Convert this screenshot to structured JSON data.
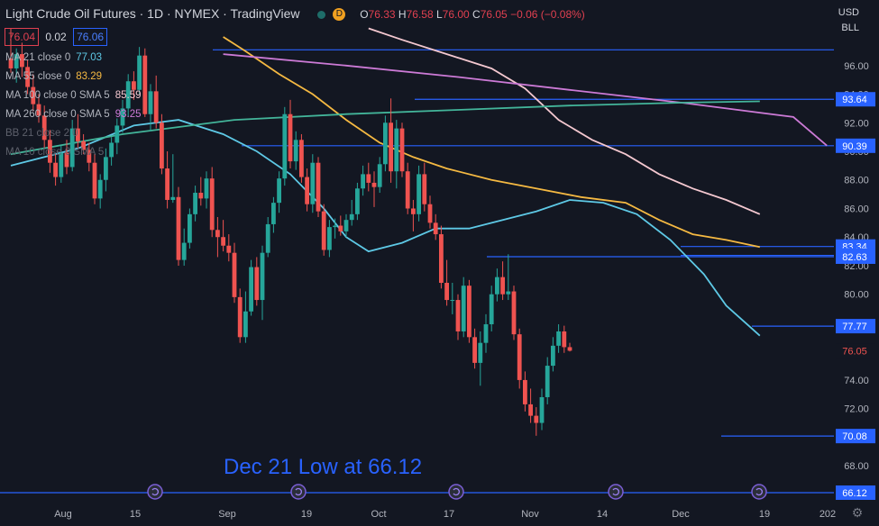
{
  "header": {
    "title": "Light Crude Oil Futures · 1D · NYMEX · TradingView",
    "badge": "D",
    "o_label": "O",
    "o": "76.33",
    "h_label": "H",
    "h": "76.58",
    "l_label": "L",
    "l": "76.00",
    "c_label": "C",
    "c": "76.05",
    "change": "−0.06 (−0.08%)"
  },
  "price_box": {
    "sell": "76.04",
    "spread": "0.02",
    "buy": "76.06"
  },
  "indicators": [
    {
      "label": "MA 21 close 0",
      "value": "77.03",
      "color": "#5ec9e6"
    },
    {
      "label": "MA 55 close 0",
      "value": "83.29",
      "color": "#f5b942"
    },
    {
      "label": "MA 100 close 0 SMA 5",
      "value": "85.59",
      "color": "#f4c8d0"
    },
    {
      "label": "MA 260 close 0 SMA 5",
      "value": "93.25",
      "color": "#cc7ad6"
    },
    {
      "label": "BB 21 close 2 0",
      "value": "",
      "color": "#5d606b"
    },
    {
      "label": "MA 10 close 0 SMA 5",
      "value": "",
      "color": "#5d606b"
    }
  ],
  "currency": "USD",
  "unit": "BLL",
  "annotation": "Dec 21 Low at 66.12",
  "colors": {
    "up": "#26a69a",
    "down": "#ef5350",
    "level": "#2962ff",
    "bg": "#131722"
  },
  "chart_data": {
    "type": "candlestick",
    "ylim": [
      65.3,
      99.2
    ],
    "y_ticks": [
      "96.00",
      "94.00",
      "92.00",
      "90.00",
      "88.00",
      "86.00",
      "84.00",
      "82.00",
      "80.00",
      "78.00",
      "76.00",
      "74.00",
      "72.00",
      "70.00",
      "68.00"
    ],
    "x_ticks": [
      "Aug",
      "15",
      "Sep",
      "19",
      "Oct",
      "17",
      "Nov",
      "14",
      "Dec",
      "19",
      "202"
    ],
    "levels": [
      {
        "label": "93.64",
        "value": 93.64
      },
      {
        "label": "90.39",
        "value": 90.39
      },
      {
        "label": "83.34",
        "value": 83.34
      },
      {
        "label": "82.72",
        "value": 82.72
      },
      {
        "label": "82.63",
        "value": 82.63
      },
      {
        "label": "77.77",
        "value": 77.77
      },
      {
        "label": "76.05",
        "value": 76.05
      },
      {
        "label": "70.08",
        "value": 70.08
      },
      {
        "label": "66.12",
        "value": 66.12
      }
    ],
    "candles": [
      {
        "o": 96.5,
        "h": 98.6,
        "l": 95.5,
        "c": 95.8
      },
      {
        "o": 95.8,
        "h": 97.2,
        "l": 94.8,
        "c": 96.8
      },
      {
        "o": 96.8,
        "h": 97.6,
        "l": 95.2,
        "c": 95.9
      },
      {
        "o": 95.9,
        "h": 96.4,
        "l": 94.0,
        "c": 94.5
      },
      {
        "o": 94.5,
        "h": 95.4,
        "l": 92.8,
        "c": 93.3
      },
      {
        "o": 93.3,
        "h": 94.0,
        "l": 92.0,
        "c": 92.5
      },
      {
        "o": 92.5,
        "h": 93.2,
        "l": 90.2,
        "c": 90.8
      },
      {
        "o": 90.8,
        "h": 91.5,
        "l": 88.5,
        "c": 89.2
      },
      {
        "o": 89.2,
        "h": 89.8,
        "l": 87.6,
        "c": 88.2
      },
      {
        "o": 88.2,
        "h": 90.4,
        "l": 87.8,
        "c": 89.9
      },
      {
        "o": 89.9,
        "h": 90.8,
        "l": 88.4,
        "c": 88.9
      },
      {
        "o": 88.9,
        "h": 92.2,
        "l": 88.6,
        "c": 91.6
      },
      {
        "o": 91.6,
        "h": 92.6,
        "l": 90.2,
        "c": 90.7
      },
      {
        "o": 90.7,
        "h": 91.2,
        "l": 89.8,
        "c": 90.1
      },
      {
        "o": 90.1,
        "h": 90.6,
        "l": 88.6,
        "c": 89.2
      },
      {
        "o": 89.2,
        "h": 89.8,
        "l": 86.3,
        "c": 86.7
      },
      {
        "o": 86.7,
        "h": 88.4,
        "l": 86.0,
        "c": 88.0
      },
      {
        "o": 88.0,
        "h": 90.2,
        "l": 87.2,
        "c": 89.6
      },
      {
        "o": 89.6,
        "h": 91.0,
        "l": 89.0,
        "c": 90.6
      },
      {
        "o": 90.6,
        "h": 92.3,
        "l": 89.8,
        "c": 91.8
      },
      {
        "o": 91.8,
        "h": 93.6,
        "l": 91.3,
        "c": 93.0
      },
      {
        "o": 93.0,
        "h": 95.4,
        "l": 92.4,
        "c": 94.9
      },
      {
        "o": 94.9,
        "h": 95.6,
        "l": 93.6,
        "c": 94.3
      },
      {
        "o": 94.3,
        "h": 97.3,
        "l": 94.0,
        "c": 96.7
      },
      {
        "o": 96.7,
        "h": 97.2,
        "l": 92.4,
        "c": 92.6
      },
      {
        "o": 92.6,
        "h": 94.7,
        "l": 91.4,
        "c": 94.2
      },
      {
        "o": 94.2,
        "h": 95.3,
        "l": 91.6,
        "c": 92.0
      },
      {
        "o": 92.0,
        "h": 92.6,
        "l": 88.4,
        "c": 88.8
      },
      {
        "o": 88.8,
        "h": 90.0,
        "l": 86.0,
        "c": 86.6
      },
      {
        "o": 86.6,
        "h": 89.8,
        "l": 86.4,
        "c": 86.8
      },
      {
        "o": 86.8,
        "h": 87.5,
        "l": 82.0,
        "c": 82.4
      },
      {
        "o": 82.4,
        "h": 84.6,
        "l": 82.0,
        "c": 83.6
      },
      {
        "o": 83.6,
        "h": 86.0,
        "l": 83.2,
        "c": 85.6
      },
      {
        "o": 85.6,
        "h": 87.6,
        "l": 85.1,
        "c": 87.1
      },
      {
        "o": 87.1,
        "h": 88.2,
        "l": 86.2,
        "c": 86.7
      },
      {
        "o": 86.7,
        "h": 88.6,
        "l": 86.0,
        "c": 88.1
      },
      {
        "o": 88.1,
        "h": 88.9,
        "l": 84.0,
        "c": 84.5
      },
      {
        "o": 84.5,
        "h": 85.4,
        "l": 82.6,
        "c": 84.0
      },
      {
        "o": 84.0,
        "h": 85.2,
        "l": 83.0,
        "c": 83.4
      },
      {
        "o": 83.4,
        "h": 84.2,
        "l": 82.3,
        "c": 82.9
      },
      {
        "o": 82.9,
        "h": 83.6,
        "l": 79.4,
        "c": 79.8
      },
      {
        "o": 79.8,
        "h": 80.4,
        "l": 76.6,
        "c": 77.0
      },
      {
        "o": 77.0,
        "h": 80.2,
        "l": 76.6,
        "c": 78.8
      },
      {
        "o": 78.8,
        "h": 82.4,
        "l": 78.5,
        "c": 81.9
      },
      {
        "o": 81.9,
        "h": 82.6,
        "l": 79.2,
        "c": 79.6
      },
      {
        "o": 79.6,
        "h": 83.4,
        "l": 78.2,
        "c": 82.9
      },
      {
        "o": 82.9,
        "h": 85.4,
        "l": 82.6,
        "c": 84.9
      },
      {
        "o": 84.9,
        "h": 86.8,
        "l": 84.3,
        "c": 86.4
      },
      {
        "o": 86.4,
        "h": 88.6,
        "l": 85.7,
        "c": 88.1
      },
      {
        "o": 88.1,
        "h": 93.1,
        "l": 87.6,
        "c": 92.6
      },
      {
        "o": 92.6,
        "h": 93.6,
        "l": 88.8,
        "c": 89.3
      },
      {
        "o": 89.3,
        "h": 91.4,
        "l": 88.7,
        "c": 90.8
      },
      {
        "o": 90.8,
        "h": 91.2,
        "l": 87.8,
        "c": 88.2
      },
      {
        "o": 88.2,
        "h": 88.8,
        "l": 85.8,
        "c": 86.3
      },
      {
        "o": 86.3,
        "h": 89.8,
        "l": 85.7,
        "c": 89.2
      },
      {
        "o": 89.2,
        "h": 89.6,
        "l": 85.4,
        "c": 85.8
      },
      {
        "o": 85.8,
        "h": 86.3,
        "l": 82.7,
        "c": 83.1
      },
      {
        "o": 83.1,
        "h": 85.2,
        "l": 82.6,
        "c": 84.7
      },
      {
        "o": 84.7,
        "h": 85.3,
        "l": 83.9,
        "c": 84.8
      },
      {
        "o": 84.8,
        "h": 85.5,
        "l": 84.1,
        "c": 84.4
      },
      {
        "o": 84.4,
        "h": 85.6,
        "l": 84.0,
        "c": 85.2
      },
      {
        "o": 85.2,
        "h": 86.6,
        "l": 84.8,
        "c": 85.6
      },
      {
        "o": 85.6,
        "h": 87.8,
        "l": 85.2,
        "c": 87.4
      },
      {
        "o": 87.4,
        "h": 89.0,
        "l": 86.9,
        "c": 88.4
      },
      {
        "o": 88.4,
        "h": 89.2,
        "l": 87.2,
        "c": 87.8
      },
      {
        "o": 87.8,
        "h": 88.6,
        "l": 86.1,
        "c": 87.5
      },
      {
        "o": 87.5,
        "h": 89.6,
        "l": 87.1,
        "c": 89.1
      },
      {
        "o": 89.1,
        "h": 92.5,
        "l": 88.6,
        "c": 92.0
      },
      {
        "o": 92.0,
        "h": 93.7,
        "l": 87.8,
        "c": 88.6
      },
      {
        "o": 88.6,
        "h": 92.2,
        "l": 87.4,
        "c": 91.6
      },
      {
        "o": 91.6,
        "h": 92.0,
        "l": 88.2,
        "c": 88.6
      },
      {
        "o": 88.6,
        "h": 89.2,
        "l": 85.6,
        "c": 86.0
      },
      {
        "o": 86.0,
        "h": 86.6,
        "l": 84.4,
        "c": 85.6
      },
      {
        "o": 85.6,
        "h": 89.0,
        "l": 85.1,
        "c": 88.4
      },
      {
        "o": 88.4,
        "h": 89.2,
        "l": 85.8,
        "c": 86.3
      },
      {
        "o": 86.3,
        "h": 86.9,
        "l": 84.6,
        "c": 85.0
      },
      {
        "o": 85.0,
        "h": 85.6,
        "l": 83.8,
        "c": 84.2
      },
      {
        "o": 84.2,
        "h": 84.8,
        "l": 80.4,
        "c": 80.8
      },
      {
        "o": 80.8,
        "h": 82.4,
        "l": 79.2,
        "c": 79.6
      },
      {
        "o": 79.6,
        "h": 80.8,
        "l": 78.6,
        "c": 79.6
      },
      {
        "o": 79.6,
        "h": 80.0,
        "l": 76.8,
        "c": 77.4
      },
      {
        "o": 77.4,
        "h": 81.2,
        "l": 77.0,
        "c": 80.6
      },
      {
        "o": 80.6,
        "h": 81.0,
        "l": 76.6,
        "c": 77.0
      },
      {
        "o": 77.0,
        "h": 77.6,
        "l": 74.8,
        "c": 75.2
      },
      {
        "o": 75.2,
        "h": 77.4,
        "l": 73.6,
        "c": 76.6
      },
      {
        "o": 76.6,
        "h": 78.6,
        "l": 75.9,
        "c": 77.9
      },
      {
        "o": 77.9,
        "h": 80.6,
        "l": 77.4,
        "c": 80.0
      },
      {
        "o": 80.0,
        "h": 81.8,
        "l": 79.5,
        "c": 81.2
      },
      {
        "o": 81.2,
        "h": 82.3,
        "l": 79.6,
        "c": 80.0
      },
      {
        "o": 80.0,
        "h": 82.8,
        "l": 79.6,
        "c": 80.2
      },
      {
        "o": 80.2,
        "h": 80.6,
        "l": 76.8,
        "c": 77.2
      },
      {
        "o": 77.2,
        "h": 77.6,
        "l": 73.4,
        "c": 74.0
      },
      {
        "o": 74.0,
        "h": 74.6,
        "l": 71.8,
        "c": 72.3
      },
      {
        "o": 72.3,
        "h": 73.4,
        "l": 71.0,
        "c": 71.5
      },
      {
        "o": 71.5,
        "h": 72.1,
        "l": 70.1,
        "c": 71.0
      },
      {
        "o": 71.0,
        "h": 73.4,
        "l": 70.5,
        "c": 72.8
      },
      {
        "o": 72.8,
        "h": 75.6,
        "l": 72.3,
        "c": 75.0
      },
      {
        "o": 75.0,
        "h": 77.0,
        "l": 74.6,
        "c": 76.4
      },
      {
        "o": 76.4,
        "h": 77.9,
        "l": 75.9,
        "c": 77.4
      },
      {
        "o": 77.4,
        "h": 77.8,
        "l": 75.9,
        "c": 76.3
      },
      {
        "o": 76.3,
        "h": 76.6,
        "l": 76.0,
        "c": 76.05
      }
    ],
    "moving_averages": [
      {
        "name": "MA 21",
        "color": "#5ec9e6",
        "points": [
          [
            0,
            89.0
          ],
          [
            12,
            90.2
          ],
          [
            22,
            91.8
          ],
          [
            30,
            92.2
          ],
          [
            38,
            91.2
          ],
          [
            44,
            90.0
          ],
          [
            50,
            88.4
          ],
          [
            56,
            86.0
          ],
          [
            60,
            84.0
          ],
          [
            64,
            83.0
          ],
          [
            70,
            83.6
          ],
          [
            76,
            84.6
          ],
          [
            82,
            84.6
          ],
          [
            88,
            85.2
          ],
          [
            94,
            85.8
          ],
          [
            100,
            86.6
          ],
          [
            106,
            86.4
          ],
          [
            112,
            85.6
          ],
          [
            118,
            83.8
          ],
          [
            124,
            81.4
          ],
          [
            128,
            79.2
          ],
          [
            132,
            77.8
          ],
          [
            134,
            77.1
          ]
        ]
      },
      {
        "name": "MA 55",
        "color": "#f5b942",
        "points": [
          [
            38,
            98.0
          ],
          [
            42,
            97.0
          ],
          [
            48,
            95.4
          ],
          [
            54,
            94.0
          ],
          [
            60,
            92.2
          ],
          [
            66,
            90.6
          ],
          [
            72,
            89.6
          ],
          [
            78,
            88.8
          ],
          [
            86,
            88.0
          ],
          [
            94,
            87.4
          ],
          [
            102,
            86.8
          ],
          [
            110,
            86.4
          ],
          [
            116,
            85.2
          ],
          [
            122,
            84.2
          ],
          [
            128,
            83.8
          ],
          [
            134,
            83.3
          ]
        ]
      },
      {
        "name": "MA 100",
        "color": "#f4c8d0",
        "points": [
          [
            64,
            98.6
          ],
          [
            70,
            97.8
          ],
          [
            78,
            96.8
          ],
          [
            86,
            95.8
          ],
          [
            92,
            94.4
          ],
          [
            98,
            92.2
          ],
          [
            104,
            90.8
          ],
          [
            110,
            89.8
          ],
          [
            116,
            88.4
          ],
          [
            122,
            87.4
          ],
          [
            128,
            86.6
          ],
          [
            134,
            85.6
          ]
        ]
      },
      {
        "name": "MA 260",
        "color": "#cc7ad6",
        "points": [
          [
            38,
            96.8
          ],
          [
            60,
            96.0
          ],
          [
            80,
            95.2
          ],
          [
            100,
            94.3
          ],
          [
            120,
            93.4
          ],
          [
            140,
            92.4
          ],
          [
            146,
            90.4
          ]
        ]
      },
      {
        "name": "MA 10",
        "color": "#43b59a",
        "points": [
          [
            0,
            89.8
          ],
          [
            20,
            91.2
          ],
          [
            40,
            92.2
          ],
          [
            60,
            92.6
          ],
          [
            80,
            92.9
          ],
          [
            100,
            93.2
          ],
          [
            120,
            93.4
          ],
          [
            134,
            93.5
          ]
        ]
      }
    ]
  }
}
